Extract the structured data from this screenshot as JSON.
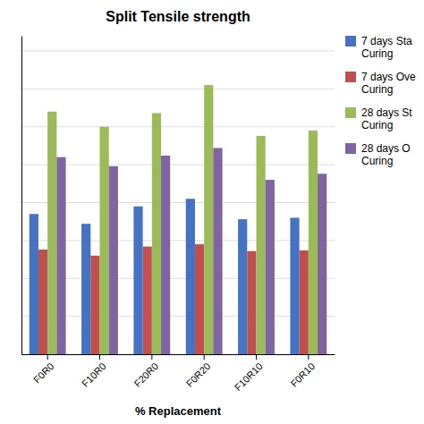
{
  "chart_data": {
    "type": "bar",
    "title": "Split Tensile strength",
    "xlabel": "% Replacement",
    "categories": [
      "F0R0",
      "F10R0",
      "F20R0",
      "F0R20",
      "F10R10",
      "F0R10"
    ],
    "series": [
      {
        "name": "7 days Sta\nCuring",
        "color": "#4472C4",
        "values": [
          1.85,
          1.72,
          1.95,
          2.05,
          1.78,
          1.8
        ]
      },
      {
        "name": "7 days Ove\nCuring",
        "color": "#C0504D",
        "values": [
          1.38,
          1.3,
          1.42,
          1.45,
          1.36,
          1.37
        ]
      },
      {
        "name": "28 days St\nCuring",
        "color": "#9BBB59",
        "values": [
          3.2,
          3.0,
          3.18,
          3.55,
          2.88,
          2.95
        ]
      },
      {
        "name": "28 days O\nCuring",
        "color": "#8064A2",
        "values": [
          2.6,
          2.48,
          2.62,
          2.72,
          2.3,
          2.38
        ]
      }
    ],
    "ylim": [
      0,
      4.2
    ],
    "yticks": [
      0,
      0.5,
      1,
      1.5,
      2,
      2.5,
      3,
      3.5,
      4
    ],
    "grid": true,
    "legend": "right",
    "tick_labels": "x"
  }
}
